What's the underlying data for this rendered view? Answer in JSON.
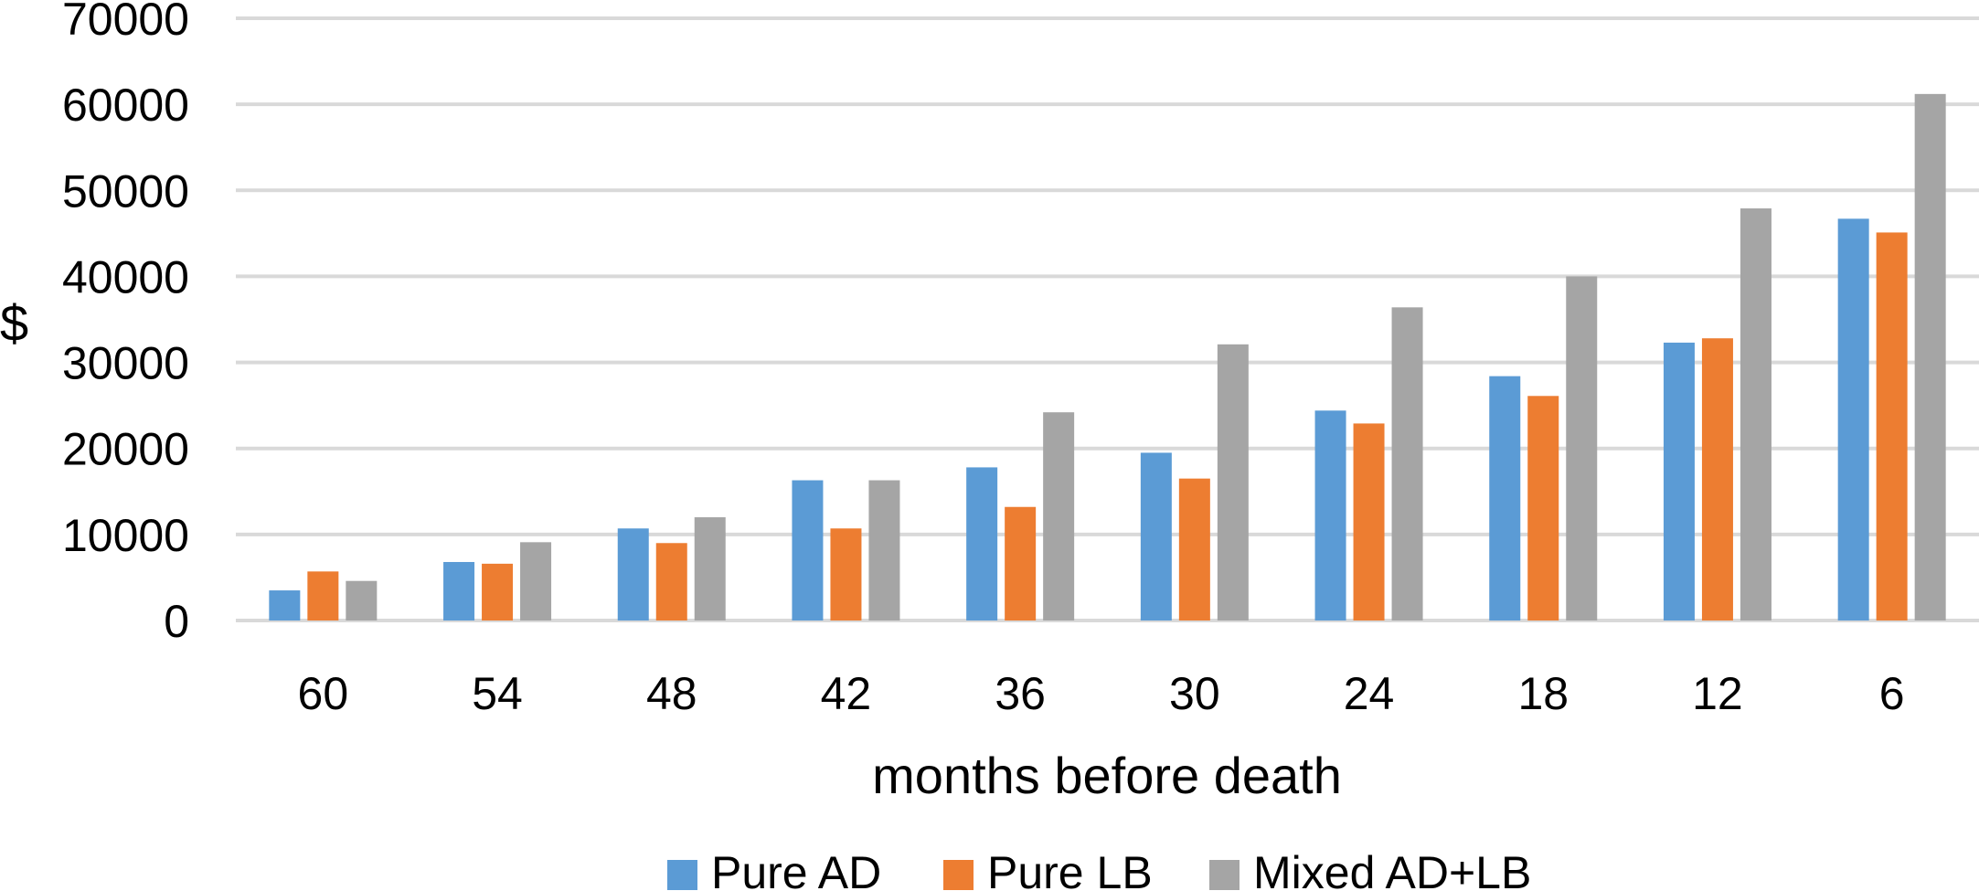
{
  "chart_data": {
    "type": "bar",
    "xlabel": "months before death",
    "ylabel": "$",
    "ylim": [
      0,
      70000
    ],
    "yticks": [
      "0",
      "10000",
      "20000",
      "30000",
      "40000",
      "50000",
      "60000",
      "70000"
    ],
    "categories": [
      "60",
      "54",
      "48",
      "42",
      "36",
      "30",
      "24",
      "18",
      "12",
      "6"
    ],
    "series": [
      {
        "name": "Pure AD",
        "color": "#5B9BD5",
        "values": [
          3500,
          6800,
          10700,
          16300,
          17800,
          19500,
          24400,
          28400,
          32300,
          46700
        ]
      },
      {
        "name": "Pure LB",
        "color": "#ED7D31",
        "values": [
          5700,
          6600,
          9000,
          10700,
          13200,
          16500,
          22900,
          26100,
          32800,
          45100
        ]
      },
      {
        "name": "Mixed AD+LB",
        "color": "#A5A5A5",
        "values": [
          4600,
          9100,
          12000,
          16300,
          24200,
          32100,
          36400,
          40000,
          47900,
          61200
        ]
      }
    ],
    "grid": true,
    "gridColor": "#D9D9D9",
    "legend_position": "bottom"
  }
}
